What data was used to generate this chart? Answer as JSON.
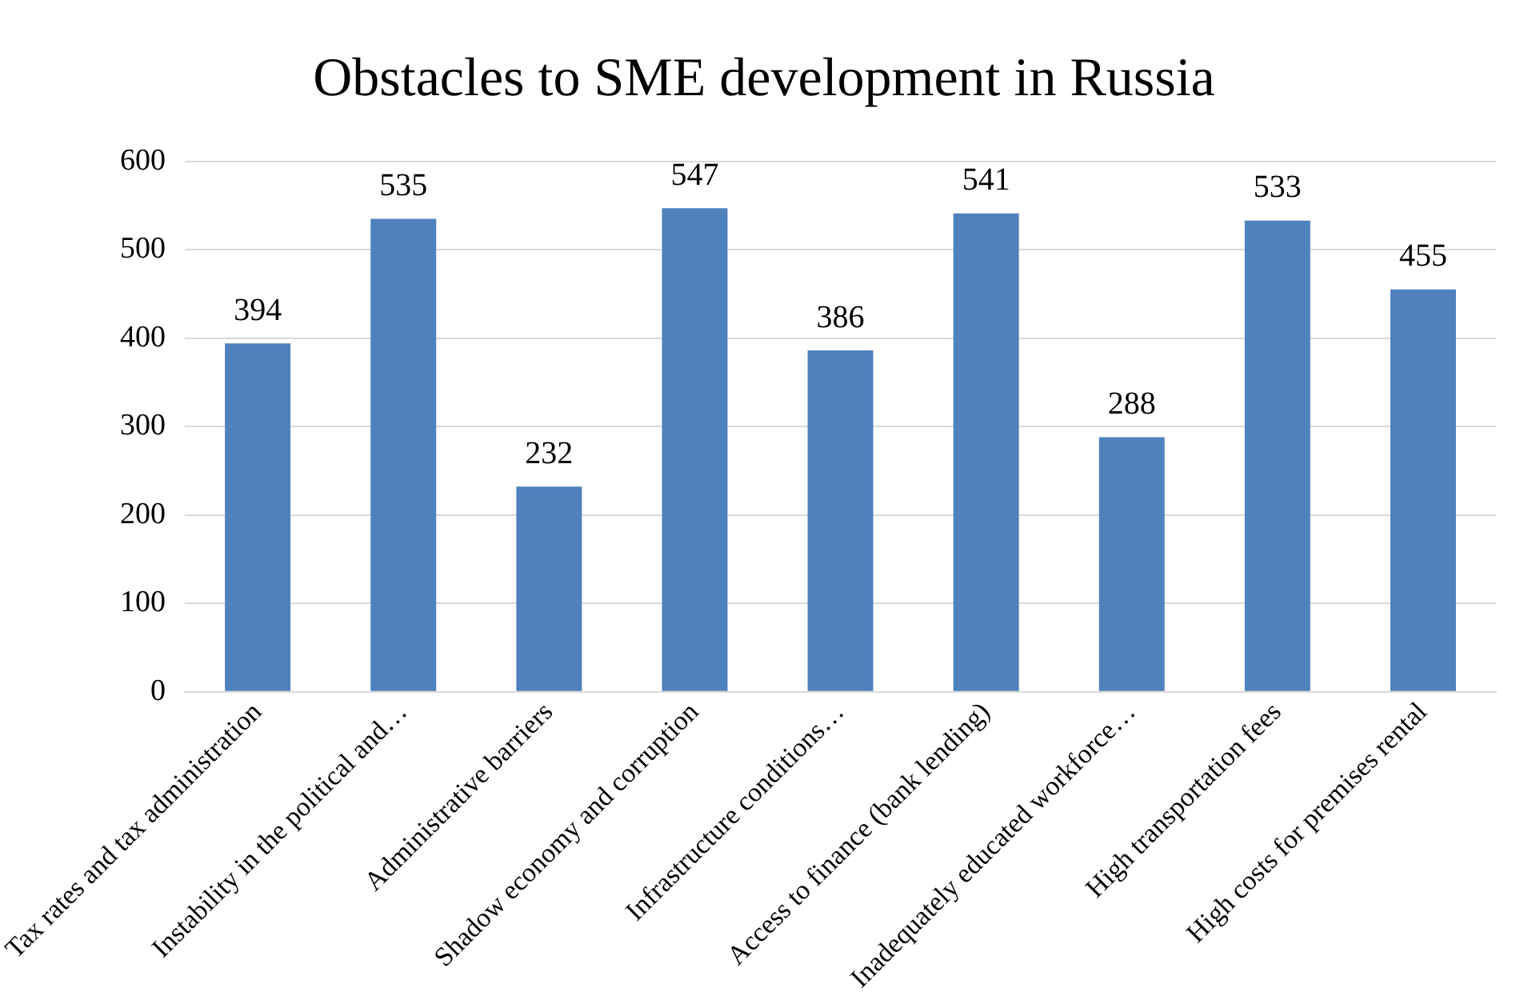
{
  "chart_data": {
    "type": "bar",
    "title": "Obstacles to SME development in Russia",
    "categories": [
      "Tax rates and tax administration",
      "Instability in the political and…",
      "Administrative barriers",
      "Shadow economy and corruption",
      "Infrastructure conditions…",
      "Access to finance (bank lending)",
      "Inadequately educated workforce…",
      "High transportation fees",
      "High costs for premises rental"
    ],
    "values": [
      394,
      535,
      232,
      547,
      386,
      541,
      288,
      533,
      455
    ],
    "color": "#4f81bd",
    "ylim": [
      0,
      600
    ],
    "yticks": [
      0,
      100,
      200,
      300,
      400,
      500,
      600
    ],
    "grid": "y",
    "data_labels": true,
    "legend": false
  }
}
